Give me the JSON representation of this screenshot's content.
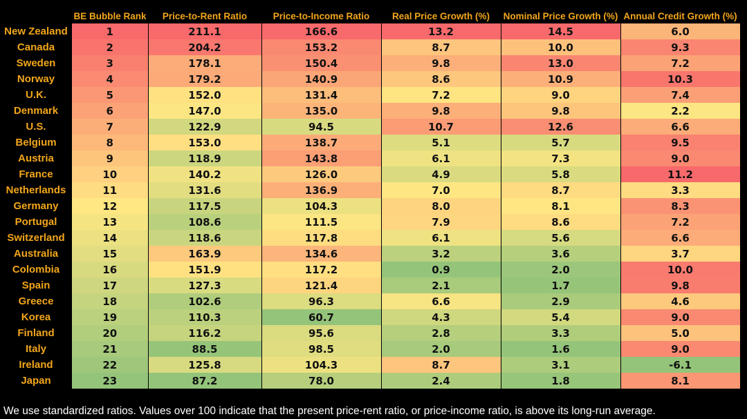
{
  "chart_data": {
    "type": "heatmap",
    "columns": [
      "BE Bubble Rank",
      "Price-to-Rent Ratio",
      "Price-to-Income Ratio",
      "Real Price Growth (%)",
      "Nominal Price Growth (%)",
      "Annual Credit Growth (%)"
    ],
    "rows": [
      {
        "country": "New Zealand",
        "values": [
          "1",
          "211.1",
          "166.6",
          "13.2",
          "14.5",
          "6.0"
        ]
      },
      {
        "country": "Canada",
        "values": [
          "2",
          "204.2",
          "153.2",
          "8.7",
          "10.0",
          "9.3"
        ]
      },
      {
        "country": "Sweden",
        "values": [
          "3",
          "178.1",
          "150.4",
          "9.8",
          "13.0",
          "7.2"
        ]
      },
      {
        "country": "Norway",
        "values": [
          "4",
          "179.2",
          "140.9",
          "8.6",
          "10.9",
          "10.3"
        ]
      },
      {
        "country": "U.K.",
        "values": [
          "5",
          "152.0",
          "131.4",
          "7.2",
          "9.0",
          "7.4"
        ]
      },
      {
        "country": "Denmark",
        "values": [
          "6",
          "147.0",
          "135.0",
          "9.8",
          "9.8",
          "2.2"
        ]
      },
      {
        "country": "U.S.",
        "values": [
          "7",
          "122.9",
          "94.5",
          "10.7",
          "12.6",
          "6.6"
        ]
      },
      {
        "country": "Belgium",
        "values": [
          "8",
          "153.0",
          "138.7",
          "5.1",
          "5.7",
          "9.5"
        ]
      },
      {
        "country": "Austria",
        "values": [
          "9",
          "118.9",
          "143.8",
          "6.1",
          "7.3",
          "9.0"
        ]
      },
      {
        "country": "France",
        "values": [
          "10",
          "140.2",
          "126.0",
          "4.9",
          "5.8",
          "11.2"
        ]
      },
      {
        "country": "Netherlands",
        "values": [
          "11",
          "131.6",
          "136.9",
          "7.0",
          "8.7",
          "3.3"
        ]
      },
      {
        "country": "Germany",
        "values": [
          "12",
          "117.5",
          "104.3",
          "8.0",
          "8.1",
          "8.3"
        ]
      },
      {
        "country": "Portugal",
        "values": [
          "13",
          "108.6",
          "111.5",
          "7.9",
          "8.6",
          "7.2"
        ]
      },
      {
        "country": "Switzerland",
        "values": [
          "14",
          "118.6",
          "117.8",
          "6.1",
          "5.6",
          "6.6"
        ]
      },
      {
        "country": "Australia",
        "values": [
          "15",
          "163.9",
          "134.6",
          "3.2",
          "3.6",
          "3.7"
        ]
      },
      {
        "country": "Colombia",
        "values": [
          "16",
          "151.9",
          "117.2",
          "0.9",
          "2.0",
          "10.0"
        ]
      },
      {
        "country": "Spain",
        "values": [
          "17",
          "127.3",
          "121.4",
          "2.1",
          "1.7",
          "9.8"
        ]
      },
      {
        "country": "Greece",
        "values": [
          "18",
          "102.6",
          "96.3",
          "6.6",
          "2.9",
          "4.6"
        ]
      },
      {
        "country": "Korea",
        "values": [
          "19",
          "110.3",
          "60.7",
          "4.3",
          "5.4",
          "9.0"
        ]
      },
      {
        "country": "Finland",
        "values": [
          "20",
          "116.2",
          "95.6",
          "2.8",
          "3.3",
          "5.0"
        ]
      },
      {
        "country": "Italy",
        "values": [
          "21",
          "88.5",
          "98.5",
          "2.0",
          "1.6",
          "9.0"
        ]
      },
      {
        "country": "Ireland",
        "values": [
          "22",
          "125.8",
          "104.3",
          "8.7",
          "3.1",
          "-6.1"
        ]
      },
      {
        "country": "Japan",
        "values": [
          "23",
          "87.2",
          "78.0",
          "2.4",
          "1.8",
          "8.1"
        ]
      }
    ],
    "color_scale": {
      "low": "#94c47a",
      "mid": "#ffe783",
      "high": "#f8696b"
    },
    "grid": false
  },
  "footnote": "We use standardized ratios. Values over 100 indicate that the present price-rent ratio, or price-income ratio, is above its long-run average."
}
